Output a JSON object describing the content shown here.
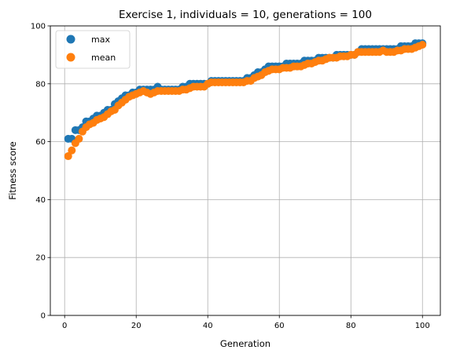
{
  "chart_data": {
    "type": "scatter",
    "title": "Exercise 1, individuals = 10, generations = 100",
    "xlabel": "Generation",
    "ylabel": "Fitness score",
    "xlim": [
      -4,
      105
    ],
    "ylim": [
      0,
      100
    ],
    "xticks": [
      0,
      20,
      40,
      60,
      80,
      100
    ],
    "yticks": [
      0,
      20,
      40,
      60,
      80,
      100
    ],
    "grid": true,
    "legend_position": "top-left",
    "x": [
      1,
      2,
      3,
      4,
      5,
      6,
      7,
      8,
      9,
      10,
      11,
      12,
      13,
      14,
      15,
      16,
      17,
      18,
      19,
      20,
      21,
      22,
      23,
      24,
      25,
      26,
      27,
      28,
      29,
      30,
      31,
      32,
      33,
      34,
      35,
      36,
      37,
      38,
      39,
      40,
      41,
      42,
      43,
      44,
      45,
      46,
      47,
      48,
      49,
      50,
      51,
      52,
      53,
      54,
      55,
      56,
      57,
      58,
      59,
      60,
      61,
      62,
      63,
      64,
      65,
      66,
      67,
      68,
      69,
      70,
      71,
      72,
      73,
      74,
      75,
      76,
      77,
      78,
      79,
      80,
      81,
      82,
      83,
      84,
      85,
      86,
      87,
      88,
      89,
      90,
      91,
      92,
      93,
      94,
      95,
      96,
      97,
      98,
      99,
      100
    ],
    "series": [
      {
        "name": "max",
        "color": "#1f77b4",
        "values": [
          61,
          61,
          64,
          64,
          65,
          67,
          67,
          68,
          69,
          69,
          70,
          71,
          71,
          73,
          74,
          75,
          76,
          76,
          77,
          77,
          78,
          78,
          78,
          78,
          78,
          79,
          78,
          78,
          78,
          78,
          78,
          78,
          79,
          79,
          80,
          80,
          80,
          80,
          80,
          80,
          81,
          81,
          81,
          81,
          81,
          81,
          81,
          81,
          81,
          81,
          82,
          82,
          83,
          84,
          84,
          85,
          86,
          86,
          86,
          86,
          86,
          87,
          87,
          87,
          87,
          87,
          88,
          88,
          88,
          88,
          89,
          89,
          89,
          89,
          89,
          90,
          90,
          90,
          90,
          90,
          90,
          91,
          92,
          92,
          92,
          92,
          92,
          92,
          92,
          92,
          92,
          92,
          92,
          93,
          93,
          93,
          93,
          94,
          94,
          94
        ]
      },
      {
        "name": "mean",
        "color": "#ff7f0e",
        "values": [
          55,
          57,
          59.5,
          61,
          63.5,
          65,
          66,
          66.5,
          67.5,
          68,
          68.5,
          69.5,
          70.5,
          71,
          72.5,
          73.5,
          74.5,
          75.5,
          76,
          76.5,
          77,
          77.5,
          77,
          76.5,
          77,
          77.5,
          77.5,
          77.5,
          77.5,
          77.5,
          77.5,
          77.5,
          78,
          78,
          78.5,
          79,
          79,
          79,
          79,
          80,
          80.5,
          80.5,
          80.5,
          80.5,
          80.5,
          80.5,
          80.5,
          80.5,
          80.5,
          80.5,
          81,
          81,
          82,
          82.5,
          83,
          84,
          84.5,
          85,
          85,
          85,
          85.5,
          85.5,
          85.5,
          86,
          86,
          86,
          86.5,
          87,
          87,
          87.5,
          88,
          88,
          88.5,
          89,
          89,
          89,
          89.5,
          89.5,
          89.5,
          90,
          90,
          91,
          91,
          91,
          91,
          91,
          91,
          91,
          91.5,
          91,
          91,
          91,
          91.5,
          91.5,
          92,
          92,
          92,
          92.5,
          93,
          93.5
        ]
      }
    ]
  }
}
